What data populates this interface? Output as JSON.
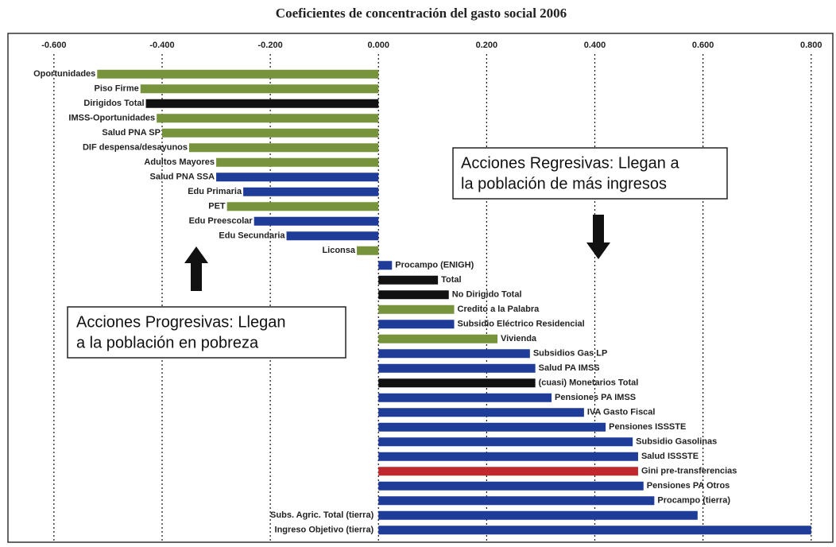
{
  "chart_data": {
    "type": "barh",
    "title": "Coeficientes de concentración del gasto social 2006",
    "categories": [
      "Oportunidades",
      "Piso Firme",
      "Dirigidos Total",
      "IMSS-Oportunidades",
      "Salud PNA SP",
      "DIF despensa/desayunos",
      "Adultos Mayores",
      "Salud PNA SSA",
      "Edu Primaria",
      "PET",
      "Edu Preescolar",
      "Edu Secundaria",
      "Liconsa",
      "Procampo (ENIGH)",
      "Total",
      "No Dirigido Total",
      "Credito a la Palabra",
      "Subsidio Eléctrico Residencial",
      "Vivienda",
      "Subsidios Gas LP",
      "Salud PA IMSS",
      "(cuasi) Monetarios Total",
      "Pensiones PA IMSS",
      "IVA Gasto Fiscal",
      "Pensiones ISSSTE",
      "Subsidio Gasolinas",
      "Salud ISSSTE",
      "Gini pre-transferencias",
      "Pensiones PA Otros",
      "Procampo (tierra)",
      "Subs. Agric. Total (tierra)",
      "Ingreso Objetivo (tierra)"
    ],
    "values": [
      -0.52,
      -0.44,
      -0.43,
      -0.41,
      -0.4,
      -0.35,
      -0.3,
      -0.3,
      -0.25,
      -0.28,
      -0.23,
      -0.17,
      -0.04,
      0.025,
      0.11,
      0.13,
      0.14,
      0.14,
      0.22,
      0.28,
      0.29,
      0.29,
      0.32,
      0.38,
      0.42,
      0.47,
      0.48,
      0.48,
      0.49,
      0.51,
      0.59,
      0.8
    ],
    "colors": [
      "#77933c",
      "#77933c",
      "#111111",
      "#77933c",
      "#77933c",
      "#77933c",
      "#77933c",
      "#1f3c99",
      "#1f3c99",
      "#77933c",
      "#1f3c99",
      "#1f3c99",
      "#77933c",
      "#1f3c99",
      "#111111",
      "#111111",
      "#77933c",
      "#1f3c99",
      "#77933c",
      "#1f3c99",
      "#1f3c99",
      "#111111",
      "#1f3c99",
      "#1f3c99",
      "#1f3c99",
      "#1f3c99",
      "#1f3c99",
      "#c0282d",
      "#1f3c99",
      "#1f3c99",
      "#1f3c99",
      "#1f3c99"
    ],
    "xlim": [
      -0.685,
      0.84
    ],
    "xticks": [
      {
        "value": -0.6,
        "label": "-0.600"
      },
      {
        "value": -0.4,
        "label": "-0.400"
      },
      {
        "value": -0.2,
        "label": "-0.200"
      },
      {
        "value": 0,
        "label": "0.000"
      },
      {
        "value": 0.2,
        "label": "0.200"
      },
      {
        "value": 0.4,
        "label": "0.400"
      },
      {
        "value": 0.6,
        "label": "0.600"
      },
      {
        "value": 0.8,
        "label": "0.800"
      }
    ],
    "grid": true,
    "annotations": [
      {
        "lines": [
          "Acciones Regresivas: Llegan a",
          "la población de más ingresos"
        ]
      },
      {
        "lines": [
          "Acciones Progresivas: Llegan",
          "a la población en pobreza"
        ]
      }
    ]
  }
}
